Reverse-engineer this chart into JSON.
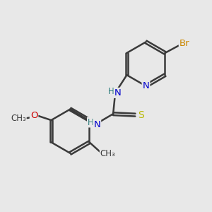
{
  "background_color": "#e8e8e8",
  "bond_color": "#3a3a3a",
  "atom_colors": {
    "N": "#0000cc",
    "NH": "#2a7a7a",
    "S": "#b8b800",
    "O": "#cc0000",
    "Br": "#cc8800",
    "C": "#3a3a3a"
  },
  "bond_width": 1.8,
  "figsize": [
    3.0,
    3.0
  ],
  "dpi": 100,
  "xlim": [
    0,
    10
  ],
  "ylim": [
    0,
    10
  ]
}
